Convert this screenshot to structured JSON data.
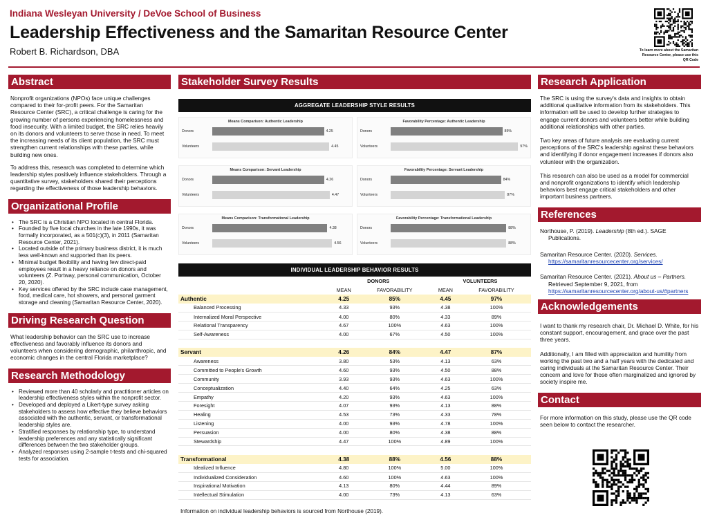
{
  "header": {
    "university": "Indiana Wesleyan University / DeVoe School of Business",
    "title": "Leadership Effectiveness and the Samaritan Resource Center",
    "author": "Robert B. Richardson, DBA",
    "qr_caption": "To learn more about the Samaritan Resource Center, please use this QR Code"
  },
  "colors": {
    "maroon": "#a3192e",
    "donor_bar": "#808080",
    "volunteer_bar": "#d4d4d4",
    "highlight": "#fdf3c7"
  },
  "abstract": {
    "heading": "Abstract",
    "p1": "Nonprofit organizations (NPOs) face unique challenges compared to their for-profit peers. For the Samaritan Resource Center (SRC), a critical challenge is caring for the growing number of persons experiencing homelessness and food insecurity. With a limited budget, the SRC relies heavily on its donors and volunteers to serve those in need. To meet the increasing needs of its client population, the SRC must strengthen current relationships with these parties, while building new ones.",
    "p2": "To address this, research was completed to determine which leadership styles positively influence stakeholders. Through a quantitative survey, stakeholders shared their perceptions regarding the effectiveness of those leadership behaviors."
  },
  "org_profile": {
    "heading": "Organizational Profile",
    "items": [
      "The SRC is a Christian NPO located in central Florida.",
      "Founded by five local churches in the late 1990s, it was formally incorporated, as a 501(c)(3), in 2011 (Samaritan Resource Center, 2021).",
      "Located outside of the primary business district, it is much less well-known and supported than its peers.",
      "Minimal budget flexibility and having few direct-paid employees result in a heavy reliance on donors and volunteers (Z. Portway, personal communication, October 20, 2020).",
      "Key services offered by the SRC include case management, food, medical care, hot showers, and personal garment storage and cleaning (Samaritan Resource Center, 2020)."
    ]
  },
  "driving_question": {
    "heading": "Driving Research Question",
    "text": "What leadership behavior can the SRC use to increase effectiveness and favorably influence its donors and volunteers when considering demographic, philanthropic, and economic changes in the central Florida marketplace?"
  },
  "methodology": {
    "heading": "Research Methodology",
    "items": [
      "Reviewed more than 40 scholarly and practitioner articles on leadership effectiveness styles within the nonprofit sector.",
      "Developed and deployed a Likert-type survey asking stakeholders to assess how effective they believe behaviors associated with the authentic, servant, or transformational leadership styles are.",
      "Stratified responses by relationship type, to understand leadership preferences and any statistically significant differences between the two stakeholder groups.",
      "Analyzed responses using 2-sample t-tests and chi-squared tests for association."
    ]
  },
  "survey": {
    "heading": "Stakeholder Survey Results",
    "aggregate_heading": "AGGREGATE LEADERSHIP STYLE RESULTS",
    "individual_heading": "INDIVIDUAL LEADERSHIP BEHAVIOR RESULTS",
    "col_donors": "DONORS",
    "col_volunteers": "VOLUNTEERS",
    "col_mean": "MEAN",
    "col_fav": "FAVORABILITY",
    "note": "Information on individual leadership behaviors is sourced from Northouse (2019)."
  },
  "chart_data": [
    {
      "type": "bar",
      "title": "Means Comparison: Authentic Leadership",
      "categories": [
        "Donors",
        "Volunteers"
      ],
      "values": [
        4.25,
        4.45
      ],
      "labels": [
        "4.25",
        "4.45"
      ],
      "xlim": [
        0,
        5
      ]
    },
    {
      "type": "bar",
      "title": "Favorability Percentage: Authentic Leadership",
      "categories": [
        "Donors",
        "Volunteers"
      ],
      "values": [
        85,
        97
      ],
      "labels": [
        "85%",
        "97%"
      ],
      "xlim": [
        0,
        100
      ]
    },
    {
      "type": "bar",
      "title": "Means Comparison: Servant Leadership",
      "categories": [
        "Donors",
        "Volunteers"
      ],
      "values": [
        4.26,
        4.47
      ],
      "labels": [
        "4.26",
        "4.47"
      ],
      "xlim": [
        0,
        5
      ]
    },
    {
      "type": "bar",
      "title": "Favorability Percentage: Servant Leadership",
      "categories": [
        "Donors",
        "Volunteers"
      ],
      "values": [
        84,
        87
      ],
      "labels": [
        "84%",
        "87%"
      ],
      "xlim": [
        0,
        100
      ]
    },
    {
      "type": "bar",
      "title": "Means Comparison: Transformational Leadership",
      "categories": [
        "Donors",
        "Volunteers"
      ],
      "values": [
        4.38,
        4.56
      ],
      "labels": [
        "4.38",
        "4.56"
      ],
      "xlim": [
        0,
        5
      ]
    },
    {
      "type": "bar",
      "title": "Favorability Percentage: Transformational Leadership",
      "categories": [
        "Donors",
        "Volunteers"
      ],
      "values": [
        88,
        88
      ],
      "labels": [
        "88%",
        "88%"
      ],
      "xlim": [
        0,
        100
      ]
    }
  ],
  "behavior_table": [
    {
      "name": "Authentic",
      "dm": "4.25",
      "df": "85%",
      "vm": "4.45",
      "vf": "97%",
      "rows": [
        {
          "name": "Balanced Processing",
          "dm": "4.33",
          "df": "93%",
          "vm": "4.38",
          "vf": "100%"
        },
        {
          "name": "Internalized Moral Perspective",
          "dm": "4.00",
          "df": "80%",
          "vm": "4.33",
          "vf": "89%"
        },
        {
          "name": "Relational Transparency",
          "dm": "4.67",
          "df": "100%",
          "vm": "4.63",
          "vf": "100%"
        },
        {
          "name": "Self-Awareness",
          "dm": "4.00",
          "df": "67%",
          "vm": "4.50",
          "vf": "100%"
        }
      ]
    },
    {
      "name": "Servant",
      "dm": "4.26",
      "df": "84%",
      "vm": "4.47",
      "vf": "87%",
      "rows": [
        {
          "name": "Awareness",
          "dm": "3.80",
          "df": "53%",
          "vm": "4.13",
          "vf": "63%"
        },
        {
          "name": "Committed to People's Growth",
          "dm": "4.60",
          "df": "93%",
          "vm": "4.50",
          "vf": "88%"
        },
        {
          "name": "Community",
          "dm": "3.93",
          "df": "93%",
          "vm": "4.63",
          "vf": "100%"
        },
        {
          "name": "Conceptualization",
          "dm": "4.40",
          "df": "64%",
          "vm": "4.25",
          "vf": "63%"
        },
        {
          "name": "Empathy",
          "dm": "4.20",
          "df": "93%",
          "vm": "4.63",
          "vf": "100%"
        },
        {
          "name": "Foresight",
          "dm": "4.07",
          "df": "93%",
          "vm": "4.13",
          "vf": "88%"
        },
        {
          "name": "Healing",
          "dm": "4.53",
          "df": "73%",
          "vm": "4.33",
          "vf": "78%"
        },
        {
          "name": "Listening",
          "dm": "4.00",
          "df": "93%",
          "vm": "4.78",
          "vf": "100%"
        },
        {
          "name": "Persuasion",
          "dm": "4.00",
          "df": "80%",
          "vm": "4.38",
          "vf": "88%"
        },
        {
          "name": "Stewardship",
          "dm": "4.47",
          "df": "100%",
          "vm": "4.89",
          "vf": "100%"
        }
      ]
    },
    {
      "name": "Transformational",
      "dm": "4.38",
      "df": "88%",
      "vm": "4.56",
      "vf": "88%",
      "rows": [
        {
          "name": "Idealized Influence",
          "dm": "4.80",
          "df": "100%",
          "vm": "5.00",
          "vf": "100%"
        },
        {
          "name": "Individualized Consideration",
          "dm": "4.60",
          "df": "100%",
          "vm": "4.63",
          "vf": "100%"
        },
        {
          "name": "Inspirational Motivation",
          "dm": "4.13",
          "df": "80%",
          "vm": "4.44",
          "vf": "89%"
        },
        {
          "name": "Intellectual Stimulation",
          "dm": "4.00",
          "df": "73%",
          "vm": "4.13",
          "vf": "63%"
        }
      ]
    }
  ],
  "application": {
    "heading": "Research Application",
    "p1": "The SRC is using the survey's data and insights to obtain additional qualitative information from its stakeholders. This information will be used to develop further strategies to engage current donors and volunteers better while building additional relationships with other parties.",
    "p2": "Two key areas of future analysis are evaluating current perceptions of the SRC's leadership against these behaviors and identifying if donor engagement increases if donors also volunteer with the organization.",
    "p3": "This research can also be used as a model for commercial and nonprofit organizations to identify which leadership behaviors best engage critical stakeholders and other important business partners."
  },
  "references": {
    "heading": "References",
    "r1_pre": "Northouse, P. (2019). ",
    "r1_ital": "Leadership",
    "r1_post": " (8th ed.). SAGE Publications.",
    "r2_pre": "Samaritan Resource Center. (2020). ",
    "r2_ital": "Services.",
    "r2_link": "https://samaritanresourcecenter.org/services/",
    "r3_pre": "Samaritan Resource Center. (2021). ",
    "r3_ital": "About us – Partners.",
    "r3_post": " Retrieved September 9, 2021, from ",
    "r3_link": "https://samaritanresourcecenter.org/about-us/#partners"
  },
  "acknowledgements": {
    "heading": "Acknowledgements",
    "p1": "I want to thank my research chair, Dr. Michael D. White, for his constant support, encouragement, and grace over the past three years.",
    "p2": "Additionally, I am filled with appreciation and humility from working the past two and a half years with the dedicated and caring individuals at the Samaritan Resource Center. Their concern and love for those often marginalized and ignored by society inspire me."
  },
  "contact": {
    "heading": "Contact",
    "text": "For more information on this study, please use the QR code seen below to contact the researcher."
  }
}
